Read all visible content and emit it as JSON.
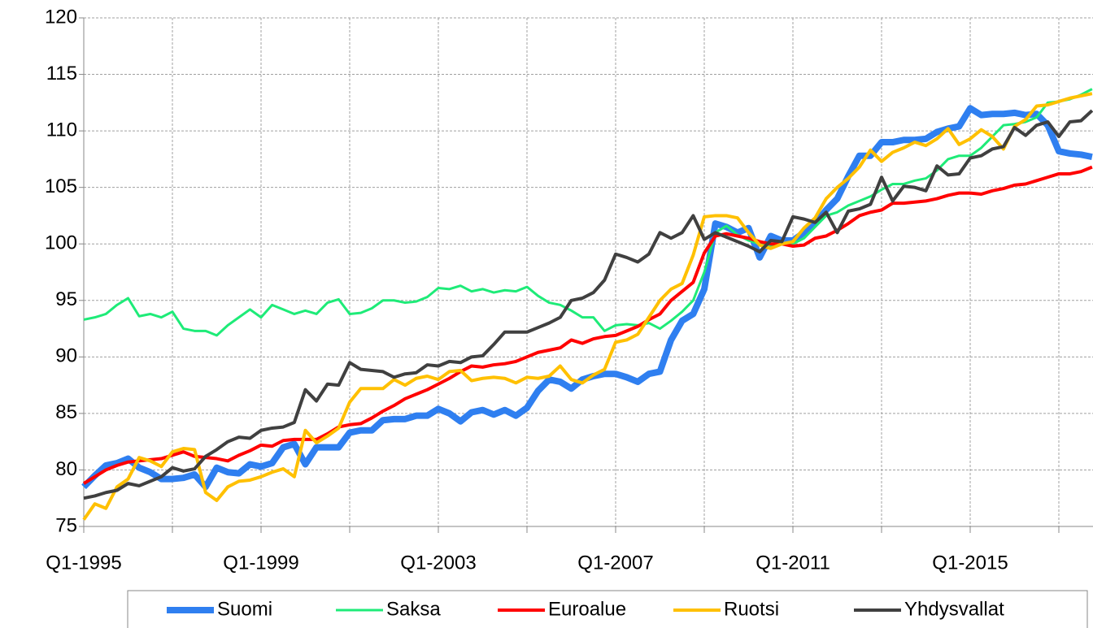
{
  "chart_data": {
    "type": "line",
    "categories": [
      "Q1-1995",
      null,
      null,
      null,
      null,
      null,
      null,
      null,
      null,
      null,
      null,
      null,
      null,
      null,
      null,
      null,
      "Q1-1999",
      null,
      null,
      null,
      null,
      null,
      null,
      null,
      null,
      null,
      null,
      null,
      null,
      null,
      null,
      null,
      "Q1-2003",
      null,
      null,
      null,
      null,
      null,
      null,
      null,
      null,
      null,
      null,
      null,
      null,
      null,
      null,
      null,
      "Q1-2007",
      null,
      null,
      null,
      null,
      null,
      null,
      null,
      null,
      null,
      null,
      null,
      null,
      null,
      null,
      null,
      "Q1-2011",
      null,
      null,
      null,
      null,
      null,
      null,
      null,
      null,
      null,
      null,
      null,
      null,
      null,
      null,
      null,
      "Q1-2015",
      null,
      null,
      null,
      null,
      null,
      null,
      null,
      null,
      null,
      null,
      null
    ],
    "series": [
      {
        "name": "Suomi",
        "color": "#2f7ff0",
        "values": [
          78.5,
          79.5,
          80.4,
          80.6,
          81,
          80.2,
          79.8,
          79.2,
          79.2,
          79.3,
          79.6,
          78.5,
          80.2,
          79.8,
          79.7,
          80.5,
          80.3,
          80.6,
          82,
          82.3,
          80.5,
          82,
          82,
          82,
          83.3,
          83.5,
          83.5,
          84.4,
          84.5,
          84.5,
          84.8,
          84.8,
          85.4,
          85,
          84.3,
          85.1,
          85.3,
          84.9,
          85.3,
          84.8,
          85.5,
          87,
          88,
          87.8,
          87.2,
          88,
          88.3,
          88.5,
          88.5,
          88.2,
          87.8,
          88.5,
          88.7,
          91.5,
          93.2,
          93.8,
          96,
          101.8,
          101.5,
          101,
          101.4,
          98.8,
          100.7,
          100.3,
          100.3,
          101,
          101.8,
          103,
          104,
          106,
          107.8,
          107.8,
          109,
          109,
          109.2,
          109.2,
          109.3,
          109.9,
          110.2,
          110.4,
          112,
          111.4,
          111.5,
          111.5,
          111.6,
          111.4,
          111.5,
          110.5,
          108.2,
          108,
          107.9,
          107.7
        ]
      },
      {
        "name": "Saksa",
        "color": "#1eeb78",
        "values": [
          93.3,
          93.5,
          93.8,
          94.6,
          95.2,
          93.6,
          93.8,
          93.5,
          94,
          92.5,
          92.3,
          92.3,
          91.9,
          92.8,
          93.5,
          94.2,
          93.5,
          94.6,
          94.2,
          93.8,
          94.1,
          93.8,
          94.8,
          95.1,
          93.8,
          93.9,
          94.3,
          95,
          95,
          94.8,
          94.9,
          95.3,
          96.1,
          96,
          96.3,
          95.8,
          96,
          95.7,
          95.9,
          95.8,
          96.2,
          95.4,
          94.8,
          94.6,
          94.1,
          93.5,
          93.5,
          92.3,
          92.8,
          92.9,
          92.8,
          93,
          92.5,
          93.2,
          94,
          95,
          97.5,
          101,
          101.6,
          100.8,
          100.3,
          100,
          99.8,
          100,
          100,
          100.5,
          101.5,
          102.5,
          102.8,
          103.4,
          103.8,
          104.2,
          104.8,
          105.3,
          105.3,
          105.6,
          105.8,
          106.5,
          107.5,
          107.8,
          107.8,
          108.5,
          109.5,
          110.5,
          110.6,
          110.8,
          111.2,
          112.5,
          112.6,
          112.8,
          113.2,
          113.7
        ]
      },
      {
        "name": "Euroalue",
        "color": "#ff0000",
        "values": [
          78.8,
          79.4,
          80,
          80.4,
          80.7,
          80.8,
          80.9,
          81,
          81.3,
          81.6,
          81.2,
          81.1,
          81,
          80.8,
          81.3,
          81.7,
          82.2,
          82.1,
          82.6,
          82.7,
          82.7,
          82.7,
          83.2,
          83.8,
          84,
          84.1,
          84.6,
          85.2,
          85.7,
          86.3,
          86.7,
          87.1,
          87.6,
          88.1,
          88.7,
          89.2,
          89.1,
          89.3,
          89.4,
          89.6,
          90,
          90.4,
          90.6,
          90.8,
          91.5,
          91.2,
          91.6,
          91.8,
          91.9,
          92.3,
          92.7,
          93.3,
          93.8,
          95,
          95.8,
          96.6,
          99.2,
          100.7,
          100.9,
          100.7,
          100.5,
          100.2,
          100,
          100,
          99.8,
          99.9,
          100.5,
          100.7,
          101.2,
          101.8,
          102.5,
          102.8,
          103,
          103.6,
          103.6,
          103.7,
          103.8,
          104,
          104.3,
          104.5,
          104.5,
          104.4,
          104.7,
          104.9,
          105.2,
          105.3,
          105.6,
          105.9,
          106.2,
          106.2,
          106.4,
          106.8
        ]
      },
      {
        "name": "Ruotsi",
        "color": "#ffc000",
        "values": [
          75.6,
          77,
          76.6,
          78.5,
          79.2,
          81.1,
          80.8,
          80.3,
          81.6,
          81.9,
          81.8,
          78,
          77.3,
          78.5,
          79,
          79.1,
          79.4,
          79.8,
          80.1,
          79.4,
          83.5,
          82.4,
          83,
          83.7,
          86,
          87.2,
          87.2,
          87.2,
          88,
          87.5,
          88.1,
          88.3,
          88,
          88.7,
          88.8,
          87.9,
          88.1,
          88.2,
          88.1,
          87.7,
          88.2,
          88.1,
          88.3,
          89.2,
          88,
          87.7,
          88.4,
          88.9,
          91.3,
          91.5,
          92,
          93.5,
          95,
          96,
          96.5,
          99,
          102.4,
          102.5,
          102.5,
          102.3,
          101,
          99.9,
          99.6,
          100,
          100.2,
          101.4,
          102.3,
          104,
          105,
          105.8,
          106.8,
          108.3,
          107.3,
          108.1,
          108.5,
          109,
          108.7,
          109.3,
          110.2,
          108.8,
          109.3,
          110.1,
          109.5,
          108.4,
          110.4,
          111,
          112.2,
          112.3,
          112.6,
          112.9,
          113.1,
          113.3
        ]
      },
      {
        "name": "Yhdysvallat",
        "color": "#404040",
        "values": [
          77.5,
          77.7,
          78,
          78.2,
          78.8,
          78.6,
          79,
          79.4,
          80.2,
          79.9,
          80.1,
          81.2,
          81.8,
          82.5,
          82.9,
          82.8,
          83.5,
          83.7,
          83.8,
          84.2,
          87.1,
          86.1,
          87.6,
          87.5,
          89.5,
          88.9,
          88.8,
          88.7,
          88.2,
          88.5,
          88.6,
          89.3,
          89.2,
          89.6,
          89.5,
          90,
          90.1,
          91.1,
          92.2,
          92.2,
          92.2,
          92.6,
          93,
          93.5,
          95,
          95.2,
          95.7,
          96.8,
          99.1,
          98.8,
          98.4,
          99.1,
          101,
          100.5,
          101,
          102.5,
          100.4,
          101,
          100.6,
          100.2,
          99.8,
          99.3,
          100.3,
          100.2,
          102.4,
          102.2,
          101.9,
          102.8,
          101,
          102.9,
          103.1,
          103.5,
          105.9,
          103.8,
          105.1,
          105,
          104.7,
          106.9,
          106.1,
          106.2,
          107.6,
          107.8,
          108.4,
          108.6,
          110.3,
          109.6,
          110.5,
          110.8,
          109.5,
          110.8,
          110.9,
          111.8
        ]
      }
    ],
    "ylim": [
      75,
      120
    ],
    "yticks": [
      75,
      80,
      85,
      90,
      95,
      100,
      105,
      110,
      115,
      120
    ],
    "grid": true,
    "legend": "bottom"
  }
}
